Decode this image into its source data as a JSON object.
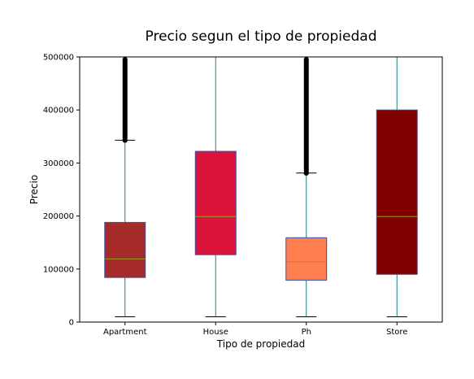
{
  "chart_data": {
    "type": "boxplot",
    "title": "Precio segun el tipo de propiedad",
    "xlabel": "Tipo de propiedad",
    "ylabel": "Precio",
    "ylim": [
      0,
      500000
    ],
    "yticks": [
      0,
      100000,
      200000,
      300000,
      400000,
      500000
    ],
    "ytick_labels": [
      "0",
      "100000",
      "200000",
      "300000",
      "400000",
      "500000"
    ],
    "grid": false,
    "categories": [
      "Apartment",
      "House",
      "Ph",
      "Store"
    ],
    "boxes": [
      {
        "category": "Apartment",
        "whisker_low": 10000,
        "q1": 84000,
        "median": 119000,
        "q3": 188000,
        "whisker_high": 343000,
        "color": "#A52A2A",
        "outliers_from": 343000,
        "outliers_to": 500000
      },
      {
        "category": "House",
        "whisker_low": 10000,
        "q1": 127000,
        "median": 199000,
        "q3": 322000,
        "whisker_high": 500000,
        "color": "#DC143C",
        "outliers_from": null,
        "outliers_to": null
      },
      {
        "category": "Ph",
        "whisker_low": 10000,
        "q1": 79000,
        "median": 114000,
        "q3": 159000,
        "whisker_high": 281000,
        "color": "#FF7F50",
        "outliers_from": 281000,
        "outliers_to": 500000
      },
      {
        "category": "Store",
        "whisker_low": 10000,
        "q1": 90000,
        "median": 199000,
        "q3": 400000,
        "whisker_high": 500000,
        "color": "#800000",
        "outliers_from": null,
        "outliers_to": null
      }
    ],
    "box_edge_color": "#4050a0",
    "whisker_color": "#1f7f7f",
    "median_color": "#8fa020"
  }
}
